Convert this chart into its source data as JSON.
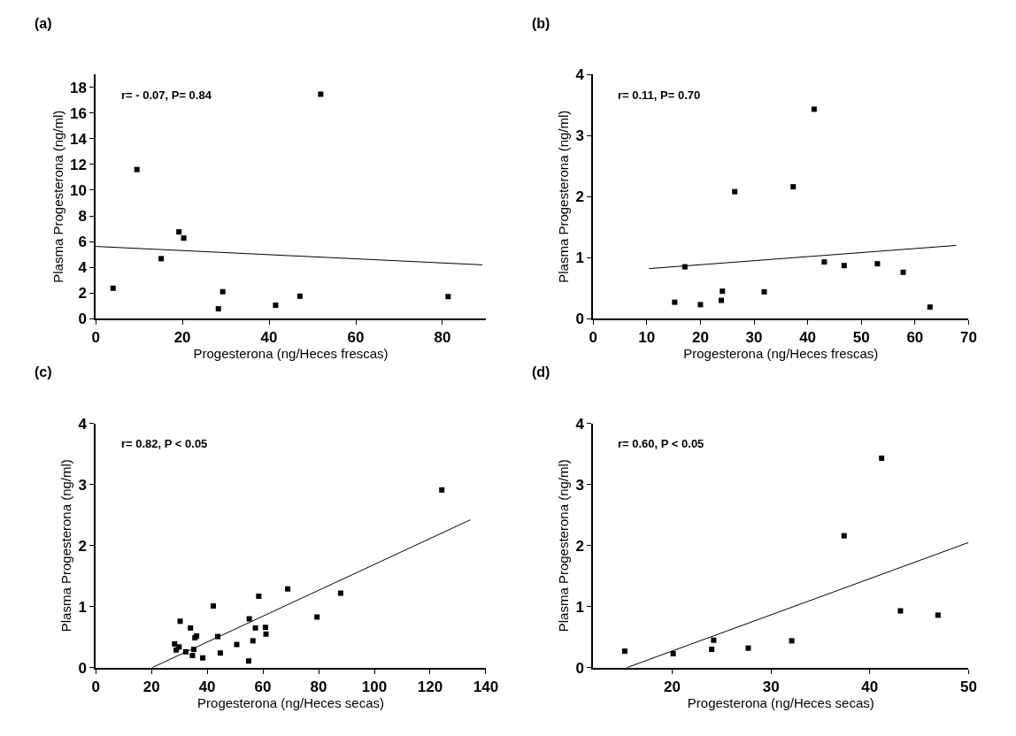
{
  "chart_data": [
    {
      "type": "scatter",
      "title": "(a)",
      "xlabel": "Progesterona (ng/Heces frescas)",
      "ylabel": "Plasma Progesterona (ng/ml)",
      "annotations": [
        "r= - 0.07, P= 0.84"
      ],
      "xlim": [
        0,
        90
      ],
      "xticks": [
        0,
        20,
        40,
        60,
        80
      ],
      "ylim": [
        0,
        19
      ],
      "yticks": [
        0,
        2,
        4,
        6,
        8,
        10,
        12,
        14,
        16,
        18
      ],
      "series": [
        {
          "marker": "square",
          "color": "#000000",
          "x": [
            4.0,
            9.5,
            15.1,
            19.2,
            20.3,
            28.3,
            29.3,
            41.5,
            47.1,
            51.9,
            81.3
          ],
          "values": [
            2.37,
            11.6,
            4.67,
            6.75,
            6.27,
            0.77,
            2.1,
            1.05,
            1.75,
            17.46,
            1.72
          ]
        },
        {
          "type": "line",
          "marker": "none",
          "color": "#000000",
          "x": [
            0,
            89.2
          ],
          "values": [
            5.62,
            4.19
          ]
        }
      ]
    },
    {
      "type": "scatter",
      "title": "(b)",
      "xlabel": "Progesterona (ng/Heces frescas)",
      "ylabel": "Plasma Progesterona (ng/ml)",
      "annotations": [
        "r= 0.11, P= 0.70"
      ],
      "xlim": [
        0,
        70
      ],
      "xticks": [
        0,
        10,
        20,
        30,
        40,
        50,
        60,
        70
      ],
      "ylim": [
        0,
        4
      ],
      "yticks": [
        0,
        1,
        2,
        3,
        4
      ],
      "series": [
        {
          "marker": "square",
          "color": "#000000",
          "x": [
            15.2,
            17.1,
            20.0,
            23.9,
            24.1,
            26.4,
            31.9,
            37.3,
            41.2,
            43.1,
            46.8,
            53.0,
            57.8,
            62.8
          ],
          "values": [
            0.27,
            0.85,
            0.23,
            0.3,
            0.45,
            2.08,
            0.44,
            2.16,
            3.43,
            0.93,
            0.87,
            0.9,
            0.76,
            0.19
          ]
        },
        {
          "type": "line",
          "marker": "none",
          "color": "#000000",
          "x": [
            10.4,
            67.7
          ],
          "values": [
            0.82,
            1.2
          ]
        }
      ]
    },
    {
      "type": "scatter",
      "title": "(c)",
      "xlabel": "Progesterona (ng/Heces secas)",
      "ylabel": "Plasma Progesterona (ng/ml)",
      "annotations": [
        "r= 0.82, P < 0.05"
      ],
      "xlim": [
        0,
        140
      ],
      "xticks": [
        0,
        20,
        40,
        60,
        80,
        100,
        120,
        140
      ],
      "ylim": [
        0,
        4
      ],
      "yticks": [
        0,
        1,
        2,
        3,
        4
      ],
      "series": [
        {
          "marker": "square",
          "color": "#000000",
          "x": [
            28.3,
            28.9,
            29.9,
            30.3,
            32.3,
            34.0,
            34.7,
            35.2,
            35.6,
            36.2,
            38.4,
            42.2,
            43.8,
            44.7,
            50.6,
            54.9,
            55.1,
            56.4,
            57.3,
            58.5,
            60.9,
            61.1,
            68.9,
            79.4,
            87.9,
            124.2
          ],
          "values": [
            0.39,
            0.29,
            0.34,
            0.76,
            0.26,
            0.65,
            0.2,
            0.3,
            0.49,
            0.52,
            0.16,
            1.01,
            0.51,
            0.24,
            0.38,
            0.11,
            0.8,
            0.44,
            0.65,
            1.17,
            0.66,
            0.55,
            1.29,
            0.83,
            1.22,
            2.91
          ]
        },
        {
          "type": "line",
          "marker": "none",
          "color": "#000000",
          "x": [
            20.2,
            134.4
          ],
          "values": [
            0,
            2.42
          ]
        }
      ]
    },
    {
      "type": "scatter",
      "title": "(d)",
      "xlabel": "Progesterona (ng/Heces secas)",
      "ylabel": "Plasma Progesterona (ng/ml)",
      "annotations": [
        "r= 0.60, P < 0.05"
      ],
      "xlim": [
        12,
        50
      ],
      "xticks": [
        20,
        30,
        40,
        50
      ],
      "ylim": [
        0,
        4
      ],
      "yticks": [
        0,
        1,
        2,
        3,
        4
      ],
      "series": [
        {
          "marker": "square",
          "color": "#000000",
          "x": [
            15.2,
            20.1,
            24.0,
            24.2,
            27.7,
            32.1,
            37.4,
            41.2,
            43.1,
            46.9
          ],
          "values": [
            0.27,
            0.23,
            0.3,
            0.45,
            0.32,
            0.44,
            2.16,
            3.43,
            0.93,
            0.86
          ]
        },
        {
          "type": "line",
          "marker": "none",
          "color": "#000000",
          "x": [
            15.4,
            50
          ],
          "values": [
            0,
            2.05
          ]
        }
      ]
    }
  ]
}
